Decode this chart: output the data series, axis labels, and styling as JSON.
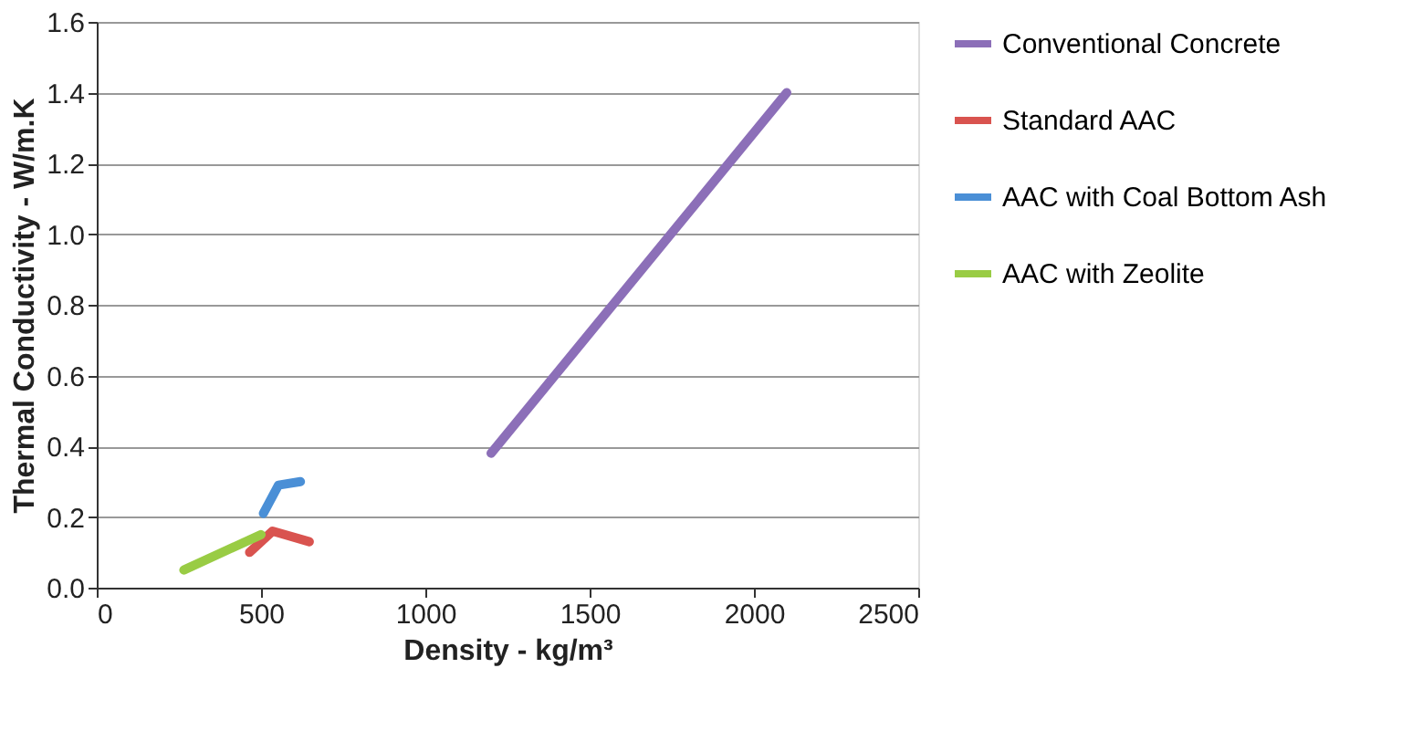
{
  "chart_data": {
    "type": "line",
    "xlabel": "Density - kg/m³",
    "ylabel": "Thermal Conductivity - W/m.K",
    "xlim": [
      0,
      2500
    ],
    "xticks": [
      0,
      500,
      1000,
      1500,
      2000,
      2500
    ],
    "ylim": [
      0,
      1.6
    ],
    "yticks": [
      {
        "value": 0,
        "label": "0.0"
      },
      0.2,
      0.4,
      0.6,
      0.8,
      {
        "value": 1,
        "label": "1.0"
      },
      1.2,
      1.4,
      1.6
    ],
    "grid": "y",
    "legend": "right",
    "marker": "none",
    "line_style": "solid",
    "series": [
      {
        "name": "Conventional Concrete",
        "color": "#8c6fb8",
        "x": [
          1200,
          2100
        ],
        "values": [
          0.38,
          1.4
        ]
      },
      {
        "name": "Standard AAC",
        "color": "#d9534f",
        "x": [
          465,
          535,
          647
        ],
        "values": [
          0.1,
          0.16,
          0.13
        ]
      },
      {
        "name": "AAC with Coal Bottom Ash",
        "color": "#4a8fd6",
        "x": [
          507,
          553,
          620
        ],
        "values": [
          0.21,
          0.29,
          0.3
        ]
      },
      {
        "name": "AAC with Zeolite",
        "color": "#99cc44",
        "x": [
          265,
          500
        ],
        "values": [
          0.05,
          0.15
        ]
      }
    ]
  }
}
